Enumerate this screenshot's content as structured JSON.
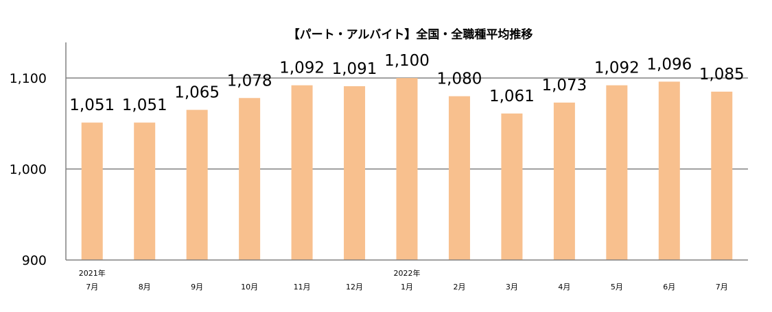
{
  "chart_data": {
    "type": "bar",
    "title": "【パート・アルバイト】全国・全職種平均推移",
    "categories": [
      "7月",
      "8月",
      "9月",
      "10月",
      "11月",
      "12月",
      "1月",
      "2月",
      "3月",
      "4月",
      "5月",
      "6月",
      "7月"
    ],
    "year_labels": [
      "2021年",
      "",
      "",
      "",
      "",
      "",
      "2022年",
      "",
      "",
      "",
      "",
      "",
      ""
    ],
    "values": [
      1051,
      1051,
      1065,
      1078,
      1092,
      1091,
      1100,
      1080,
      1061,
      1073,
      1092,
      1096,
      1085
    ],
    "data_labels": [
      "1,051",
      "1,051",
      "1,065",
      "1,078",
      "1,092",
      "1,091",
      "1,100",
      "1,080",
      "1,061",
      "1,073",
      "1,092",
      "1,096",
      "1,085"
    ],
    "ylim": [
      900,
      1140
    ],
    "yticks": [
      900,
      1000,
      1100
    ],
    "ytick_labels": [
      "900",
      "1,000",
      "1,100"
    ],
    "grid": true,
    "bar_color": "#F8C08E",
    "grid_color": "#808080"
  }
}
